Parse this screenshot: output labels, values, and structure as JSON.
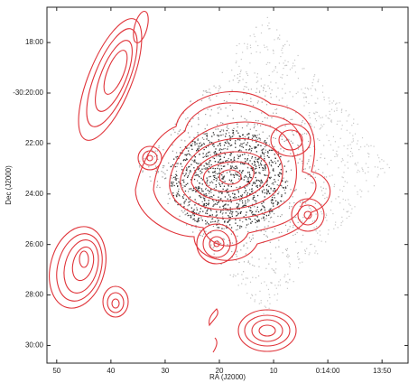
{
  "chart_data": {
    "type": "image",
    "xlabel": "RA (J2000)",
    "ylabel": "Dec (J2000)",
    "xlim": [
      891.8,
      825.2
    ],
    "ylim": [
      16.6,
      30.7
    ],
    "xticks": [
      {
        "value": 890,
        "label": "50"
      },
      {
        "value": 880,
        "label": "40"
      },
      {
        "value": 870,
        "label": "30"
      },
      {
        "value": 860,
        "label": "20"
      },
      {
        "value": 850,
        "label": "10"
      },
      {
        "value": 840,
        "label": "0:14:00"
      },
      {
        "value": 830,
        "label": "13:50"
      }
    ],
    "yticks": [
      {
        "value": 18,
        "label": "18:00"
      },
      {
        "value": 20,
        "label": "-30:20:00"
      },
      {
        "value": 22,
        "label": "22:00"
      },
      {
        "value": 24,
        "label": "24:00"
      },
      {
        "value": 26,
        "label": "26:00"
      },
      {
        "value": 28,
        "label": "28:00"
      },
      {
        "value": 30,
        "label": "30:00"
      }
    ],
    "contour_color": "#e0343a"
  }
}
